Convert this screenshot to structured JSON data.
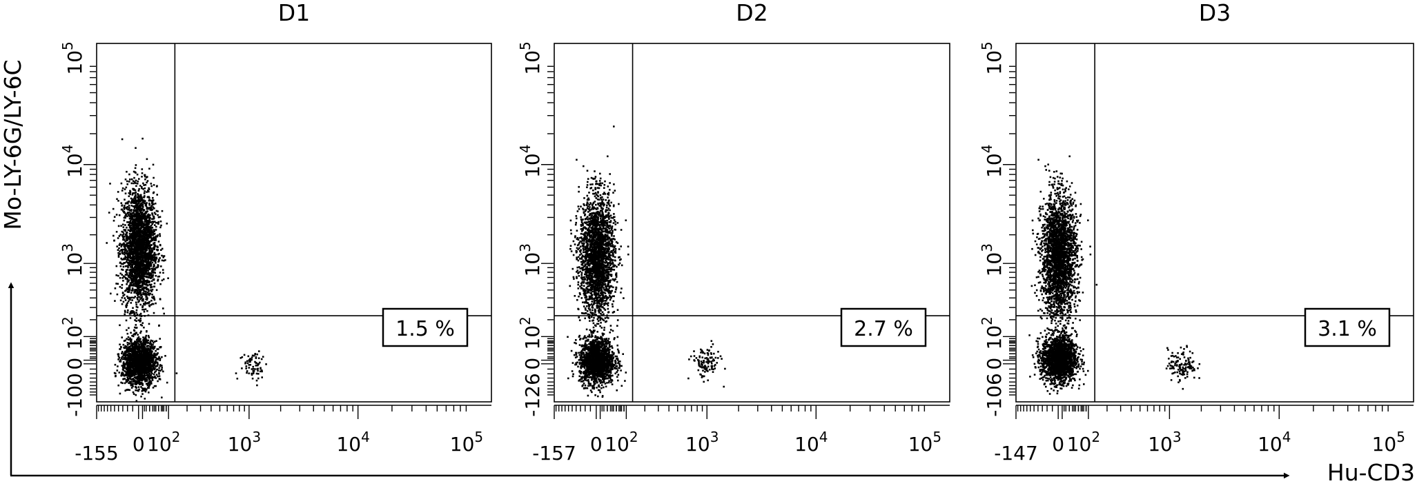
{
  "figure": {
    "global_x_label": "Hu-CD3",
    "global_y_label": "Mo-LY-6G/LY-6C"
  },
  "chart_data": [
    {
      "type": "scatter",
      "title": "D1",
      "xlabel": "Hu-CD3",
      "ylabel": "Mo-LY-6G/LY-6C",
      "x_scale": "biexponential",
      "y_scale": "biexponential",
      "x_ticks": [
        {
          "label": "-155",
          "value": -155
        },
        {
          "label": "0",
          "value": 0
        },
        {
          "label": "10",
          "sup": "2",
          "value": 100
        },
        {
          "label": "10",
          "sup": "3",
          "value": 1000
        },
        {
          "label": "10",
          "sup": "4",
          "value": 10000
        },
        {
          "label": "10",
          "sup": "5",
          "value": 100000
        }
      ],
      "y_ticks": [
        {
          "label": "-100",
          "value": -100
        },
        {
          "label": "0",
          "value": 0
        },
        {
          "label": "10",
          "sup": "2",
          "value": 100
        },
        {
          "label": "10",
          "sup": "3",
          "value": 1000
        },
        {
          "label": "10",
          "sup": "4",
          "value": 10000
        },
        {
          "label": "10",
          "sup": "5",
          "value": 100000
        }
      ],
      "gate": {
        "x": 130,
        "y": 230
      },
      "quadrant_label": "1.5 %",
      "populations": [
        {
          "name": "",
          "x_center": 0,
          "y_center": 1500,
          "count": 2600
        },
        {
          "name": "",
          "x_center": 0,
          "y_center": 5,
          "count": 1700
        },
        {
          "name": "",
          "x_center": 1100,
          "y_center": 0,
          "count": 75
        }
      ]
    },
    {
      "type": "scatter",
      "title": "D2",
      "xlabel": "Hu-CD3",
      "ylabel": "Mo-LY-6G/LY-6C",
      "x_scale": "biexponential",
      "y_scale": "biexponential",
      "x_ticks": [
        {
          "label": "-157",
          "value": -157
        },
        {
          "label": "0",
          "value": 0
        },
        {
          "label": "10",
          "sup": "2",
          "value": 100
        },
        {
          "label": "10",
          "sup": "3",
          "value": 1000
        },
        {
          "label": "10",
          "sup": "4",
          "value": 10000
        },
        {
          "label": "10",
          "sup": "5",
          "value": 100000
        }
      ],
      "y_ticks": [
        {
          "label": "-126",
          "value": -126
        },
        {
          "label": "0",
          "value": 0
        },
        {
          "label": "10",
          "sup": "2",
          "value": 100
        },
        {
          "label": "10",
          "sup": "3",
          "value": 1000
        },
        {
          "label": "10",
          "sup": "4",
          "value": 10000
        },
        {
          "label": "10",
          "sup": "5",
          "value": 100000
        }
      ],
      "gate": {
        "x": 130,
        "y": 230
      },
      "quadrant_label": "2.7 %",
      "populations": [
        {
          "name": "",
          "x_center": 0,
          "y_center": 1200,
          "count": 2400
        },
        {
          "name": "",
          "x_center": 0,
          "y_center": 10,
          "count": 1600
        },
        {
          "name": "",
          "x_center": 950,
          "y_center": 5,
          "count": 120
        }
      ]
    },
    {
      "type": "scatter",
      "title": "D3",
      "xlabel": "Hu-CD3",
      "ylabel": "Mo-LY-6G/LY-6C",
      "x_scale": "biexponential",
      "y_scale": "biexponential",
      "x_ticks": [
        {
          "label": "-147",
          "value": -147
        },
        {
          "label": "0",
          "value": 0
        },
        {
          "label": "10",
          "sup": "2",
          "value": 100
        },
        {
          "label": "10",
          "sup": "3",
          "value": 1000
        },
        {
          "label": "10",
          "sup": "4",
          "value": 10000
        },
        {
          "label": "10",
          "sup": "5",
          "value": 100000
        }
      ],
      "y_ticks": [
        {
          "label": "-106",
          "value": -106
        },
        {
          "label": "0",
          "value": 0
        },
        {
          "label": "10",
          "sup": "2",
          "value": 100
        },
        {
          "label": "10",
          "sup": "3",
          "value": 1000
        },
        {
          "label": "10",
          "sup": "4",
          "value": 10000
        },
        {
          "label": "10",
          "sup": "5",
          "value": 100000
        }
      ],
      "gate": {
        "x": 130,
        "y": 230
      },
      "quadrant_label": "3.1 %",
      "populations": [
        {
          "name": "",
          "x_center": 0,
          "y_center": 1200,
          "count": 2500
        },
        {
          "name": "",
          "x_center": 0,
          "y_center": 15,
          "count": 1800
        },
        {
          "name": "",
          "x_center": 1300,
          "y_center": 0,
          "count": 130
        }
      ]
    }
  ]
}
